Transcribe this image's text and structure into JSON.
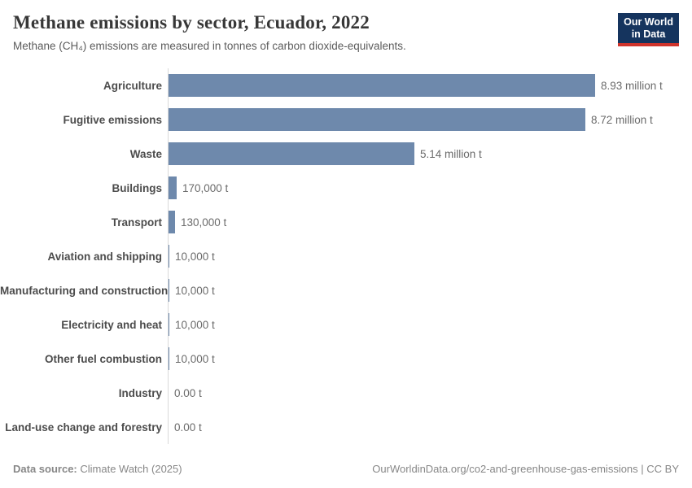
{
  "header": {
    "title": "Methane emissions by sector, Ecuador, 2022",
    "subtitle": "Methane (CH₄) emissions are measured in tonnes of carbon dioxide-equivalents.",
    "logo": {
      "line1": "Our World",
      "line2": "in Data",
      "bg_color": "#15345e",
      "accent_color": "#d0342c"
    }
  },
  "chart_data": {
    "type": "bar",
    "orientation": "horizontal",
    "title": "Methane emissions by sector, Ecuador, 2022",
    "unit": "tonnes of CO₂-equivalents",
    "categories": [
      "Agriculture",
      "Fugitive emissions",
      "Waste",
      "Buildings",
      "Transport",
      "Aviation and shipping",
      "Manufacturing and construction",
      "Electricity and heat",
      "Other fuel combustion",
      "Industry",
      "Land-use change and forestry"
    ],
    "values": [
      8930000,
      8720000,
      5140000,
      170000,
      130000,
      10000,
      10000,
      10000,
      10000,
      0,
      0
    ],
    "value_labels": [
      "8.93 million t",
      "8.72 million t",
      "5.14 million t",
      "170,000 t",
      "130,000 t",
      "10,000 t",
      "10,000 t",
      "10,000 t",
      "10,000 t",
      "0.00 t",
      "0.00 t"
    ],
    "xlim": [
      0,
      8930000
    ],
    "bar_color": "#6e89ac",
    "axis_color": "#d9d9d9",
    "grid": false,
    "legend": false
  },
  "footer": {
    "source_label": "Data source:",
    "source_value": " Climate Watch (2025)",
    "credit": "OurWorldinData.org/co2-and-greenhouse-gas-emissions | CC BY"
  }
}
